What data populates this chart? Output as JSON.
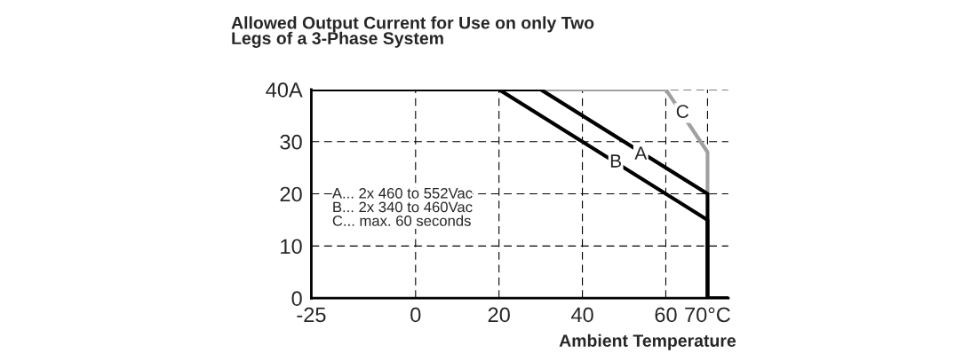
{
  "chart_data": {
    "type": "line",
    "title": "Allowed Output Current for Use on only Two\nLegs of a 3-Phase System",
    "xlabel": "Ambient Temperature",
    "series": [
      {
        "color": "#000000",
        "x": [
          -25,
          30,
          70,
          70,
          75
        ],
        "values": [
          40,
          40,
          20,
          0,
          0
        ]
      },
      {
        "color": "#000000",
        "x": [
          -25,
          20,
          70,
          70
        ],
        "values": [
          40,
          40,
          15,
          0
        ]
      },
      {
        "color": "#a0a0a0",
        "x": [
          30,
          60,
          70,
          70
        ],
        "values": [
          40,
          40,
          28,
          20
        ]
      }
    ],
    "annotations": [
      {
        "text": "A",
        "x": 54,
        "y": 27.5
      },
      {
        "text": "B",
        "x": 48,
        "y": 26
      },
      {
        "text": "C",
        "x": 64,
        "y": 35.5
      },
      "A... 2x 460 to 552Vac\nB... 2x 340 to 460Vac\nC... max. 60 seconds"
    ],
    "xlim": [
      -25,
      75
    ],
    "ylim": [
      0,
      40
    ],
    "xticks": [
      -25,
      0,
      20,
      40,
      60,
      {
        "value": 70,
        "label": "70°C"
      }
    ],
    "yticks": [
      0,
      10,
      20,
      30,
      {
        "value": 40,
        "label": "40A"
      }
    ],
    "grid": true,
    "line_style": "solid",
    "marker": "none",
    "legend": false
  }
}
